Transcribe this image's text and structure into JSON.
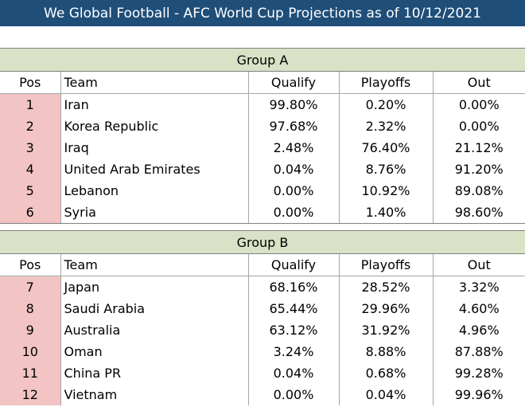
{
  "title": "We Global Football - AFC World Cup Projections as of 10/12/2021",
  "columns": {
    "pos": "Pos",
    "team": "Team",
    "qualify": "Qualify",
    "playoffs": "Playoffs",
    "out": "Out"
  },
  "groups": [
    {
      "name": "Group A",
      "rows": [
        {
          "pos": "1",
          "team": "Iran",
          "qualify": "99.80%",
          "playoffs": "0.20%",
          "out": "0.00%"
        },
        {
          "pos": "2",
          "team": "Korea Republic",
          "qualify": "97.68%",
          "playoffs": "2.32%",
          "out": "0.00%"
        },
        {
          "pos": "3",
          "team": "Iraq",
          "qualify": "2.48%",
          "playoffs": "76.40%",
          "out": "21.12%"
        },
        {
          "pos": "4",
          "team": "United Arab Emirates",
          "qualify": "0.04%",
          "playoffs": "8.76%",
          "out": "91.20%"
        },
        {
          "pos": "5",
          "team": "Lebanon",
          "qualify": "0.00%",
          "playoffs": "10.92%",
          "out": "89.08%"
        },
        {
          "pos": "6",
          "team": "Syria",
          "qualify": "0.00%",
          "playoffs": "1.40%",
          "out": "98.60%"
        }
      ]
    },
    {
      "name": "Group B",
      "rows": [
        {
          "pos": "7",
          "team": "Japan",
          "qualify": "68.16%",
          "playoffs": "28.52%",
          "out": "3.32%"
        },
        {
          "pos": "8",
          "team": "Saudi Arabia",
          "qualify": "65.44%",
          "playoffs": "29.96%",
          "out": "4.60%"
        },
        {
          "pos": "9",
          "team": "Australia",
          "qualify": "63.12%",
          "playoffs": "31.92%",
          "out": "4.96%"
        },
        {
          "pos": "10",
          "team": "Oman",
          "qualify": "3.24%",
          "playoffs": "8.88%",
          "out": "87.88%"
        },
        {
          "pos": "11",
          "team": "China PR",
          "qualify": "0.04%",
          "playoffs": "0.68%",
          "out": "99.28%"
        },
        {
          "pos": "12",
          "team": "Vietnam",
          "qualify": "0.00%",
          "playoffs": "0.04%",
          "out": "99.96%"
        }
      ]
    }
  ]
}
